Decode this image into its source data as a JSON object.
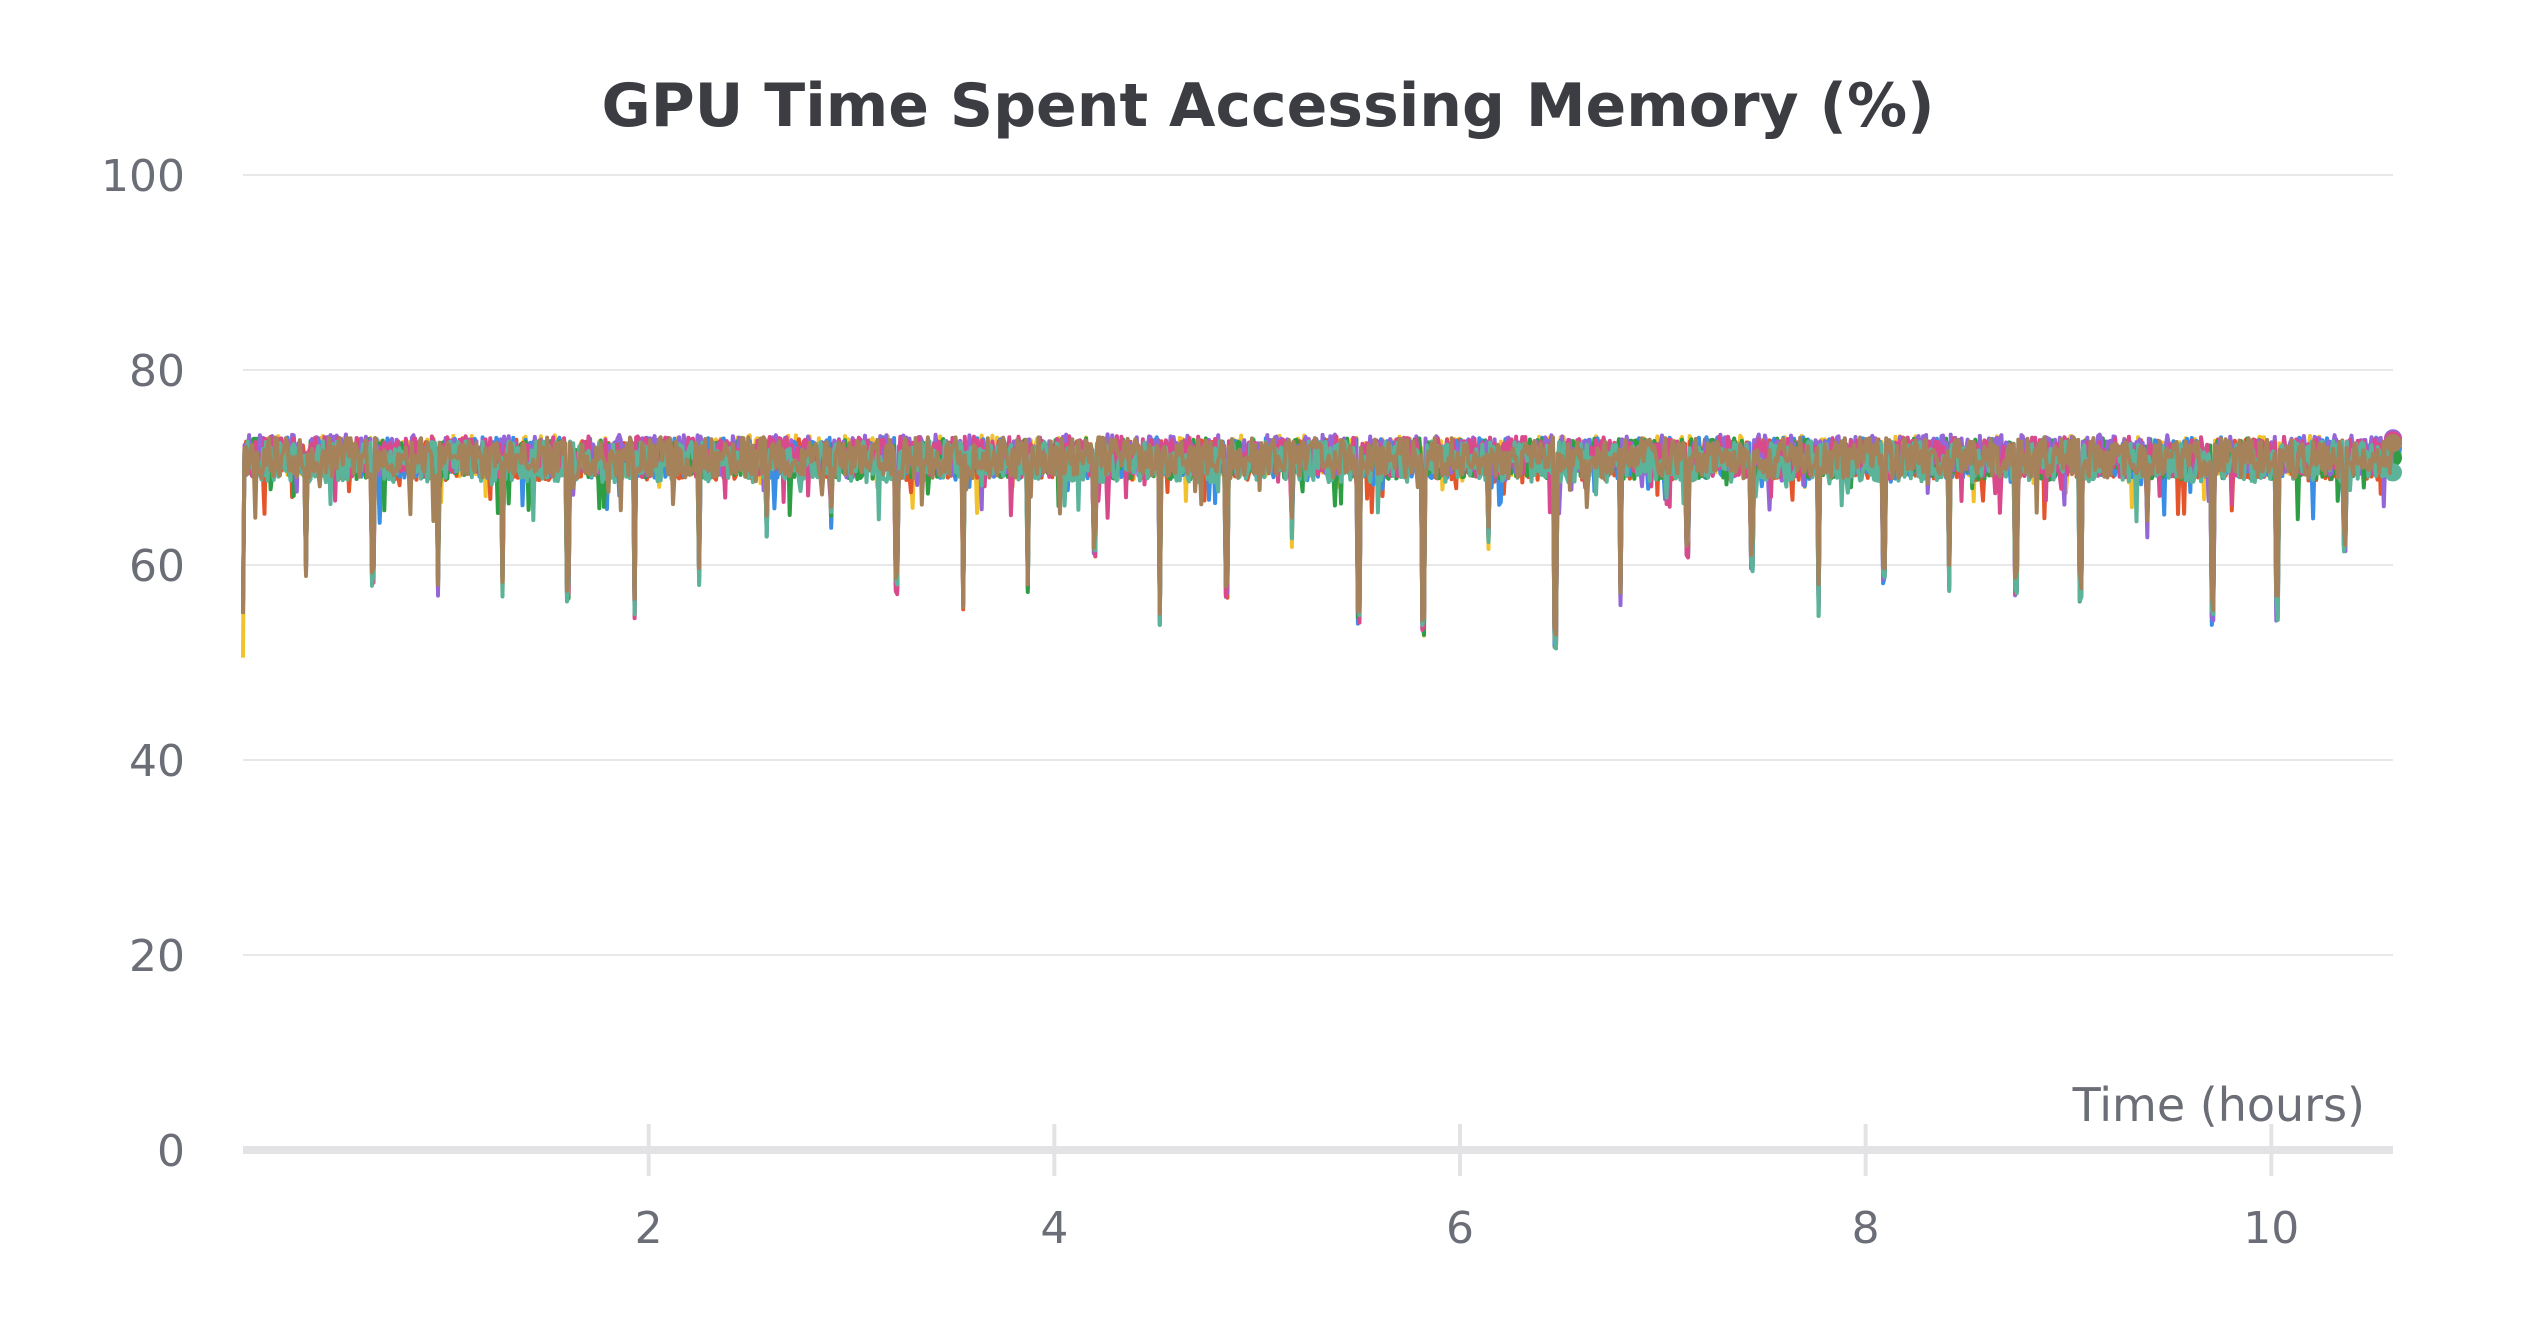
{
  "chart_data": {
    "type": "line",
    "title": "GPU Time Spent Accessing Memory (%)",
    "xlabel": "Time (hours)",
    "ylabel": "",
    "xlim": [
      0,
      10.6
    ],
    "ylim": [
      0,
      100
    ],
    "x_ticks": [
      "2",
      "4",
      "6",
      "8",
      "10"
    ],
    "y_ticks": [
      "0",
      "20",
      "40",
      "60",
      "80",
      "100"
    ],
    "grid": true,
    "series": [
      {
        "color": "#f2c12e",
        "baseline": 71.2,
        "start_value": 50.5,
        "end_value": 71.5
      },
      {
        "color": "#e4552b",
        "baseline": 70.8,
        "start_value": 55,
        "end_value": 72.5
      },
      {
        "color": "#3a8ee6",
        "baseline": 71.0,
        "start_value": 56,
        "end_value": 72
      },
      {
        "color": "#2e9e44",
        "baseline": 70.9,
        "start_value": 56,
        "end_value": 71
      },
      {
        "color": "#9466d8",
        "baseline": 71.3,
        "start_value": 56,
        "end_value": 73
      },
      {
        "color": "#d94a8c",
        "baseline": 71.1,
        "start_value": 56,
        "end_value": 72.8
      },
      {
        "color": "#5bb39a",
        "baseline": 70.6,
        "start_value": 56,
        "end_value": 69.5
      },
      {
        "color": "#a5825a",
        "baseline": 71.0,
        "start_value": 55,
        "end_value": 72.5
      }
    ],
    "dips": [
      [
        0.31,
        59
      ],
      [
        0.64,
        59
      ],
      [
        0.96,
        58
      ],
      [
        1.28,
        58
      ],
      [
        1.6,
        57.5
      ],
      [
        1.93,
        55.5
      ],
      [
        2.25,
        58.5
      ],
      [
        2.58,
        64
      ],
      [
        2.9,
        65
      ],
      [
        3.22,
        58
      ],
      [
        3.55,
        55.5
      ],
      [
        3.87,
        58
      ],
      [
        4.2,
        62
      ],
      [
        4.52,
        54
      ],
      [
        4.85,
        57.5
      ],
      [
        5.17,
        63
      ],
      [
        5.5,
        55
      ],
      [
        5.82,
        54
      ],
      [
        6.14,
        62.5
      ],
      [
        6.47,
        52.5
      ],
      [
        6.79,
        57
      ],
      [
        7.12,
        62
      ],
      [
        7.44,
        60.5
      ],
      [
        7.77,
        56
      ],
      [
        8.09,
        59
      ],
      [
        8.41,
        58.5
      ],
      [
        8.74,
        58
      ],
      [
        9.06,
        57.5
      ],
      [
        9.39,
        64
      ],
      [
        9.71,
        55
      ],
      [
        10.03,
        55.5
      ],
      [
        10.36,
        62
      ]
    ]
  }
}
